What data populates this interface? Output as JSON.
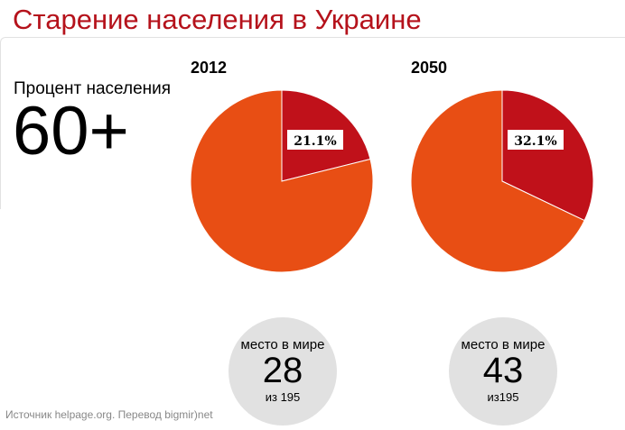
{
  "title": "Старение населения в Украине",
  "subtitle": "Процент населения",
  "age_label": "60+",
  "source": "Источник helpage.org. Перевод bigmir)net",
  "colors": {
    "elderly": "#c0111a",
    "rest": "#e84e14",
    "title": "#b5121b"
  },
  "chart_data": [
    {
      "type": "pie",
      "title": "2012",
      "slices": [
        {
          "name": "60+",
          "value": 21.1,
          "label": "21.1%"
        },
        {
          "name": "other",
          "value": 78.9
        }
      ]
    },
    {
      "type": "pie",
      "title": "2050",
      "slices": [
        {
          "name": "60+",
          "value": 32.1,
          "label": "32.1%"
        },
        {
          "name": "other",
          "value": 67.9
        }
      ]
    }
  ],
  "ranks": [
    {
      "label": "место в мире",
      "rank": "28",
      "of": "из 195"
    },
    {
      "label": "место в мире",
      "rank": "43",
      "of": "из195"
    }
  ]
}
